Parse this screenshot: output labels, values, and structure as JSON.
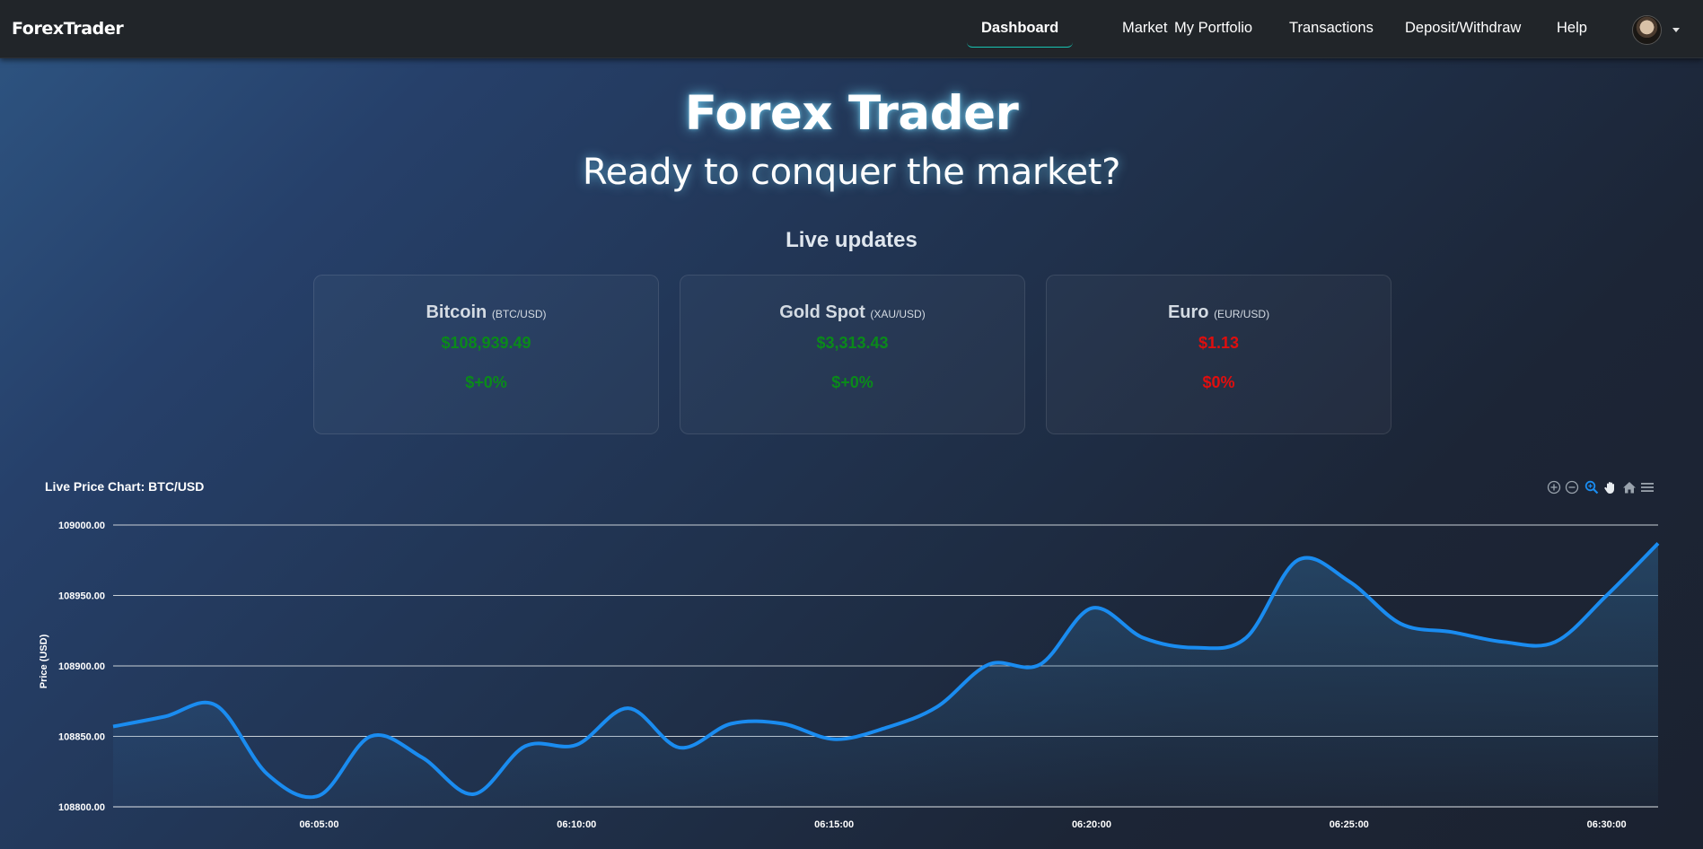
{
  "navbar": {
    "brand": "ForexTrader",
    "links": [
      {
        "label": "Dashboard",
        "active": true
      },
      {
        "label": "Market",
        "active": false
      },
      {
        "label": "My Portfolio",
        "active": false
      },
      {
        "label": "Transactions",
        "active": false
      },
      {
        "label": "Deposit/Withdraw",
        "active": false
      },
      {
        "label": "Help",
        "active": false
      }
    ]
  },
  "hero": {
    "title": "Forex Trader",
    "subtitle": "Ready to conquer the market?",
    "section_heading": "Live updates"
  },
  "cards": [
    {
      "name": "Bitcoin",
      "symbol": "(BTC/USD)",
      "price": "$108,939.49",
      "change": "$+0%",
      "trend": "up"
    },
    {
      "name": "Gold Spot",
      "symbol": "(XAU/USD)",
      "price": "$3,313.43",
      "change": "$+0%",
      "trend": "up"
    },
    {
      "name": "Euro",
      "symbol": "(EUR/USD)",
      "price": "$1.13",
      "change": "$0%",
      "trend": "down"
    }
  ],
  "colors": {
    "up": "#0a8a1a",
    "down": "#e00e0e",
    "accent_line": "#1a8cf0",
    "active_underline": "#17c3b2"
  },
  "toolbar_icons": [
    "zoom-in-icon",
    "zoom-out-icon",
    "selection-zoom-icon",
    "pan-hand-icon",
    "home-icon",
    "menu-icon"
  ],
  "chart_data": {
    "type": "area",
    "title": "Live Price Chart: BTC/USD",
    "ylabel": "Price (USD)",
    "xlabel": "",
    "ylim": [
      108800,
      109000
    ],
    "yticks": [
      "108800.00",
      "108850.00",
      "108900.00",
      "108950.00",
      "109000.00"
    ],
    "xticks": [
      "06:05:00",
      "06:10:00",
      "06:15:00",
      "06:20:00",
      "06:25:00",
      "06:30:00"
    ],
    "grid": true,
    "series": [
      {
        "x": [
          "06:01:00",
          "06:02:00",
          "06:03:00",
          "06:04:00",
          "06:05:00",
          "06:06:00",
          "06:07:00",
          "06:08:00",
          "06:09:00",
          "06:10:00",
          "06:11:00",
          "06:12:00",
          "06:13:00",
          "06:14:00",
          "06:15:00",
          "06:16:00",
          "06:17:00",
          "06:18:00",
          "06:19:00",
          "06:20:00",
          "06:21:00",
          "06:22:00",
          "06:23:00",
          "06:24:00",
          "06:25:00",
          "06:26:00",
          "06:27:00",
          "06:28:00",
          "06:29:00",
          "06:30:00",
          "06:31:00"
        ],
        "values": [
          108857,
          108864,
          108872,
          108823,
          108808,
          108850,
          108835,
          108809,
          108843,
          108844,
          108870,
          108842,
          108859,
          108859,
          108848,
          108856,
          108871,
          108901,
          108901,
          108941,
          108920,
          108913,
          108920,
          108975,
          108960,
          108930,
          108924,
          108917,
          108917,
          108950,
          108987
        ]
      }
    ]
  }
}
